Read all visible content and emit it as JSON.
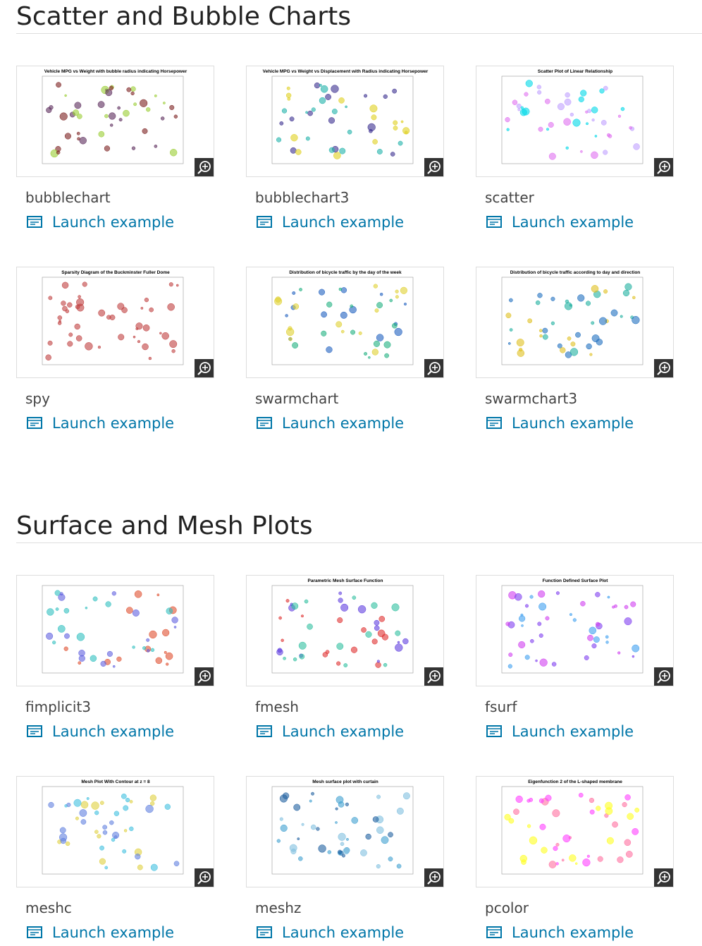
{
  "sections": [
    {
      "title": "Scatter and Bubble Charts",
      "items": [
        {
          "name": "bubblechart",
          "link": "Launch example",
          "thumb_title": "Vehicle MPG vs Weight with bubble radius indicating Horsepower"
        },
        {
          "name": "bubblechart3",
          "link": "Launch example",
          "thumb_title": "Vehicle MPG vs Weight vs Displacement with Radius indicating Horsepower"
        },
        {
          "name": "scatter",
          "link": "Launch example",
          "thumb_title": "Scatter Plot of Linear Relationship"
        },
        {
          "name": "spy",
          "link": "Launch example",
          "thumb_title": "Sparsity Diagram of the Buckminster Fuller Dome"
        },
        {
          "name": "swarmchart",
          "link": "Launch example",
          "thumb_title": "Distribution of bicycle traffic by the day of the week"
        },
        {
          "name": "swarmchart3",
          "link": "Launch example",
          "thumb_title": "Distribution of bicycle traffic according to day and direction"
        }
      ]
    },
    {
      "title": "Surface and Mesh Plots",
      "items": [
        {
          "name": "fimplicit3",
          "link": "Launch example"
        },
        {
          "name": "fmesh",
          "link": "Launch example",
          "thumb_title": "Parametric Mesh Surface Function"
        },
        {
          "name": "fsurf",
          "link": "Launch example",
          "thumb_title": "Function Defined Surface Plot"
        },
        {
          "name": "meshc",
          "link": "Launch example",
          "thumb_title": "Mesh Plot With Contour at z = 8"
        },
        {
          "name": "meshz",
          "link": "Launch example",
          "thumb_title": "Mesh surface plot with curtain"
        },
        {
          "name": "pcolor",
          "link": "Launch example",
          "thumb_title": "Eigenfunction 2 of the L-shaped membrane"
        }
      ]
    }
  ]
}
